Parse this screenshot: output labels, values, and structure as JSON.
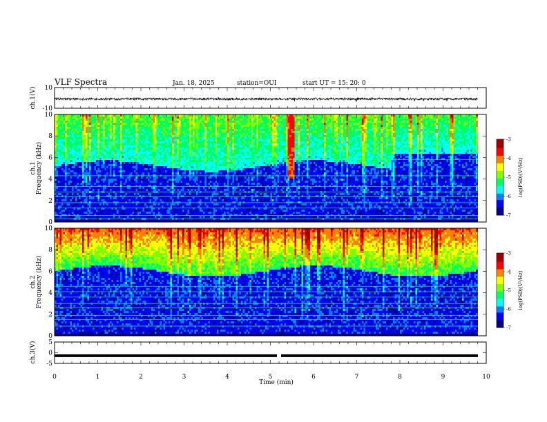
{
  "header": {
    "title": "VLF Spectra",
    "date": "Jan. 18, 2025",
    "station": "station=OUI",
    "start_ut": "start  UT =   15: 20: 0"
  },
  "chart_data": [
    {
      "type": "line",
      "name": "ch1-waveform",
      "ylabel": "ch.1(V)",
      "ylim": [
        -10,
        10
      ],
      "y_tick_labels": [
        "10",
        "-10"
      ],
      "xlim": [
        0,
        10
      ],
      "x_unit": "min",
      "baseline_v": -1
    },
    {
      "type": "heatmap",
      "name": "ch1-spectrogram",
      "ylabel_line1": "ch.1",
      "ylabel_line2": "Frequency (kHz)",
      "ylim": [
        0,
        10
      ],
      "y_ticks": [
        "0",
        "2",
        "4",
        "6",
        "8",
        "10"
      ],
      "xlim": [
        0,
        10
      ],
      "colorbar": {
        "label": "log(PSD)(V²/Hz)",
        "range": [
          -7,
          -3
        ],
        "ticks": [
          "-3",
          "-4",
          "-5",
          "-6",
          "-7"
        ]
      },
      "features": {
        "hiss_band_top_khz": 10,
        "hiss_band_lower_edge_khz": 5.2,
        "noise_lines_khz": [
          0.3,
          0.6,
          1.3,
          1.8,
          2.4,
          2.8,
          3.3,
          4.3,
          5.8
        ],
        "bright_burst_time_min": 5.45
      }
    },
    {
      "type": "heatmap",
      "name": "ch2-spectrogram",
      "ylabel_line1": "ch.2",
      "ylabel_line2": "Frequency (kHz)",
      "ylim": [
        0,
        10
      ],
      "y_ticks": [
        "0",
        "2",
        "4",
        "6",
        "8",
        "10"
      ],
      "xlim": [
        0,
        10
      ],
      "colorbar": {
        "label": "log(PSD)(V²/Hz)",
        "range": [
          -7,
          -3
        ],
        "ticks": [
          "-3",
          "-4",
          "-5",
          "-6",
          "-7"
        ]
      },
      "features": {
        "hiss_band_top_khz": 10,
        "hiss_band_lower_edge_khz": 6,
        "noise_lines_khz": [
          0.9,
          1.5,
          1.9,
          2.6,
          3.0,
          3.6,
          4.1,
          4.6
        ]
      }
    },
    {
      "type": "line",
      "name": "ch3-waveform",
      "ylabel": "ch.3(V)",
      "ylim": [
        -5,
        5
      ],
      "y_tick_labels": [
        "5",
        "0",
        "-5"
      ],
      "xlim": [
        0,
        10
      ],
      "baseline_v": -1.4,
      "gap_time_min": 5.2
    }
  ],
  "x_axis": {
    "label": "Time (min)",
    "ticks": [
      "0",
      "1",
      "2",
      "3",
      "4",
      "5",
      "6",
      "7",
      "8",
      "9",
      "10"
    ]
  },
  "colors": {
    "colormap": [
      "#00008c",
      "#0000ff",
      "#0080ff",
      "#00ffff",
      "#00ff60",
      "#80ff00",
      "#ffff00",
      "#ff8000",
      "#ff0000",
      "#a00000"
    ]
  }
}
